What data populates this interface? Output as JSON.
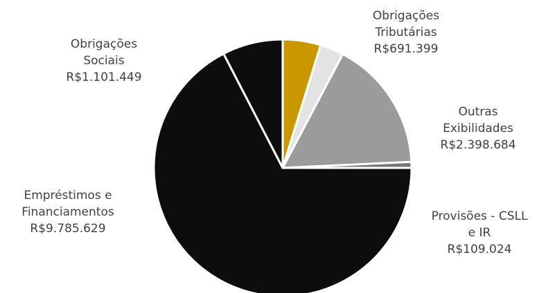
{
  "chart_data": {
    "type": "pie",
    "categories": [
      "Obrigações Tributárias",
      "",
      "Outras Exibilidades",
      "Provisões - CSLL e IR",
      "Empréstimos e Financiamentos",
      "Obrigações Sociais"
    ],
    "values": [
      691399,
      430000,
      2398684,
      109024,
      9785629,
      1101449
    ],
    "colors": [
      "#C99700",
      "#E3E3E3",
      "#9B9B9B",
      "#777777",
      "#0D0D0D",
      "#0D0D0D"
    ],
    "labels": [
      {
        "name_lines": [
          "Obrigações",
          "Tributárias"
        ],
        "value": "R$691.399"
      },
      null,
      {
        "name_lines": [
          "Outras",
          "Exibilidades"
        ],
        "value": "R$2.398.684"
      },
      {
        "name_lines": [
          "Provisões - CSLL",
          "e IR"
        ],
        "value": "R$109.024"
      },
      {
        "name_lines": [
          "Empréstimos e",
          "Financiamentos"
        ],
        "value": "R$9.785.629"
      },
      {
        "name_lines": [
          "Obrigações",
          "Sociais"
        ],
        "value": "R$1.101.449"
      }
    ],
    "start_angle_deg": 0,
    "direction": "clockwise",
    "legend": "none"
  }
}
